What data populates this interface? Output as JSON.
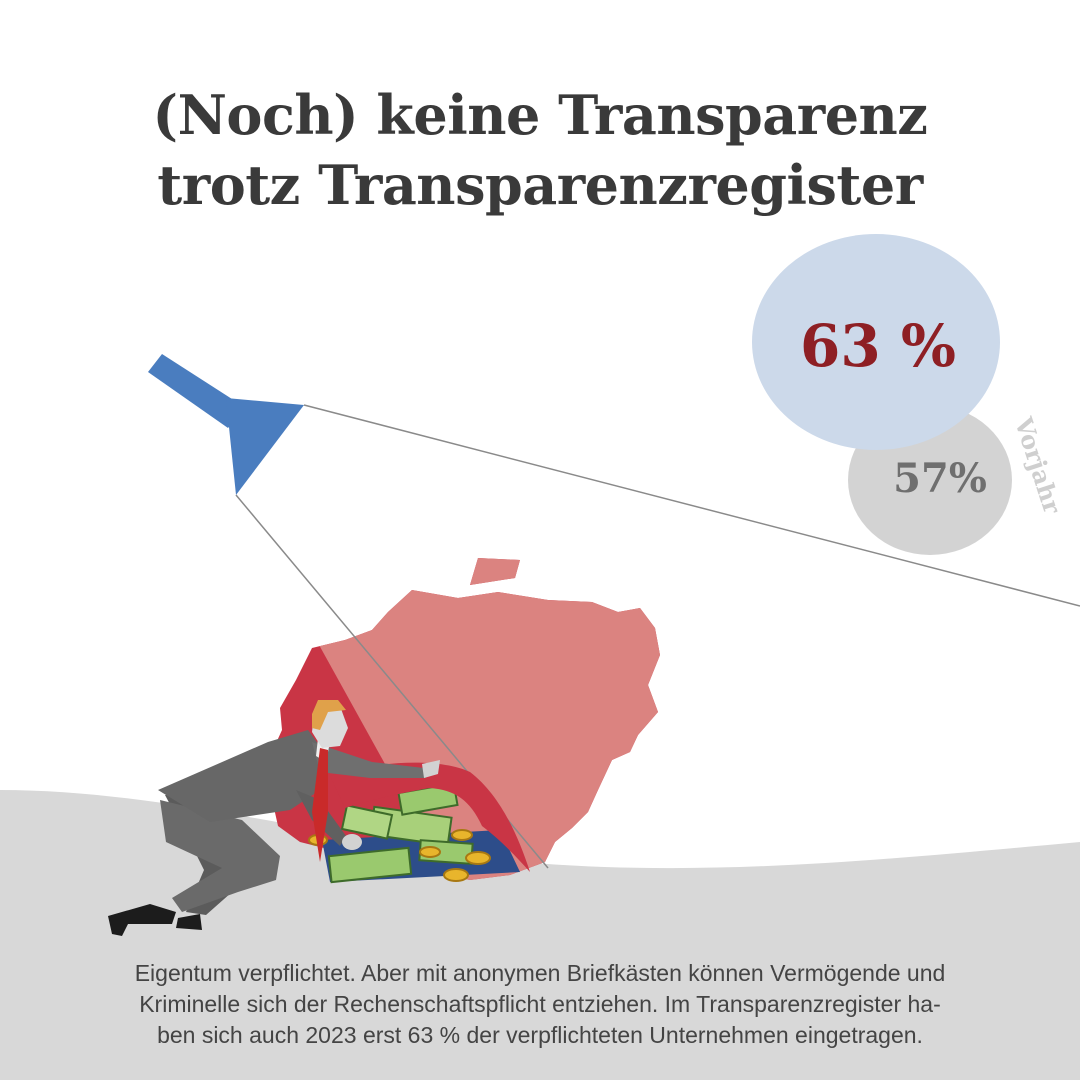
{
  "title": {
    "line1": "(Noch) keine Transparenz",
    "line2": "trotz Transparenzregister"
  },
  "stats": {
    "current": {
      "value": "63 %",
      "fill": "#ccd9ea",
      "text_color": "#8e1f24"
    },
    "previous": {
      "value": "57%",
      "label": "Vorjahr",
      "fill": "#d3d3d3",
      "text_color": "#6f6f6f",
      "label_color": "#cfcfcf"
    }
  },
  "colors": {
    "flashlight": "#4a7dbf",
    "map_dark": "#c93545",
    "map_light": "#db8380",
    "ground": "#d8d8d8",
    "beam_line": "#8a8a8a"
  },
  "illustration": {
    "icons": [
      "flashlight-icon",
      "germany-map",
      "businessman-figure",
      "money-pile"
    ]
  },
  "caption": {
    "line1": "Eigentum verpflichtet. Aber mit anonymen Briefkästen können Vermögende und",
    "line2": "Kriminelle sich der Rechenschaftspflicht entziehen. Im Transparenzregister ha-",
    "line3": "ben sich auch 2023 erst 63 % der verpflichteten Unternehmen eingetragen."
  }
}
